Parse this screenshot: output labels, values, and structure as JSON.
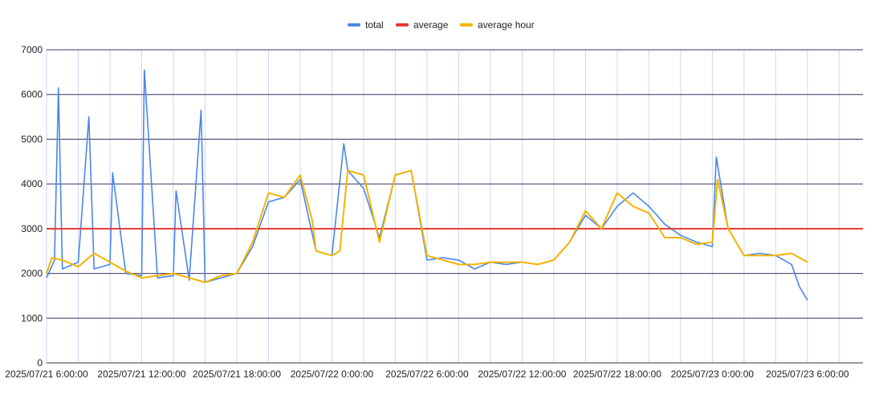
{
  "chart_data": {
    "type": "line",
    "title": "",
    "xlabel": "",
    "ylabel": "",
    "x_range": [
      "2025-07-21T04:00:00",
      "2025-07-23T07:30:00"
    ],
    "ylim": [
      0,
      7000
    ],
    "y_ticks": [
      0,
      1000,
      2000,
      3000,
      4000,
      5000,
      6000,
      7000
    ],
    "x_ticks": [
      {
        "t": "2025-07-21T04:00:00",
        "label": "2025/07/21 6:00:00"
      },
      {
        "t": "2025-07-21T10:00:00",
        "label": "2025/07/21 12:00:00"
      },
      {
        "t": "2025-07-21T16:00:00",
        "label": "2025/07/21 18:00:00"
      },
      {
        "t": "2025-07-21T22:00:00",
        "label": "2025/07/22 0:00:00"
      },
      {
        "t": "2025-07-22T04:00:00",
        "label": "2025/07/22 6:00:00"
      },
      {
        "t": "2025-07-22T10:00:00",
        "label": "2025/07/22 12:00:00"
      },
      {
        "t": "2025-07-22T16:00:00",
        "label": "2025/07/22 18:00:00"
      },
      {
        "t": "2025-07-22T22:00:00",
        "label": "2025/07/23 0:00:00"
      },
      {
        "t": "2025-07-23T04:00:00",
        "label": "2025/07/23 6:00:00"
      }
    ],
    "grid": true,
    "legend_position": "top",
    "series": [
      {
        "name": "total",
        "color": "#4a86e8",
        "points": [
          [
            "2025-07-21T04:00:00",
            1900
          ],
          [
            "2025-07-21T04:30:00",
            2300
          ],
          [
            "2025-07-21T04:45:00",
            6150
          ],
          [
            "2025-07-21T05:00:00",
            2100
          ],
          [
            "2025-07-21T06:00:00",
            2250
          ],
          [
            "2025-07-21T06:40:00",
            5500
          ],
          [
            "2025-07-21T07:00:00",
            2100
          ],
          [
            "2025-07-21T08:00:00",
            2200
          ],
          [
            "2025-07-21T08:10:00",
            4250
          ],
          [
            "2025-07-21T09:00:00",
            2000
          ],
          [
            "2025-07-21T10:00:00",
            1950
          ],
          [
            "2025-07-21T10:10:00",
            6550
          ],
          [
            "2025-07-21T11:00:00",
            1900
          ],
          [
            "2025-07-21T12:00:00",
            1950
          ],
          [
            "2025-07-21T12:10:00",
            3850
          ],
          [
            "2025-07-21T13:00:00",
            1850
          ],
          [
            "2025-07-21T13:45:00",
            5650
          ],
          [
            "2025-07-21T14:00:00",
            1800
          ],
          [
            "2025-07-21T15:00:00",
            1900
          ],
          [
            "2025-07-21T16:00:00",
            2000
          ],
          [
            "2025-07-21T17:00:00",
            2600
          ],
          [
            "2025-07-21T18:00:00",
            3600
          ],
          [
            "2025-07-21T19:00:00",
            3700
          ],
          [
            "2025-07-21T20:00:00",
            4100
          ],
          [
            "2025-07-21T21:00:00",
            2500
          ],
          [
            "2025-07-21T22:00:00",
            2400
          ],
          [
            "2025-07-21T22:45:00",
            4900
          ],
          [
            "2025-07-21T23:00:00",
            4300
          ],
          [
            "2025-07-22T00:00:00",
            3900
          ],
          [
            "2025-07-22T01:00:00",
            2800
          ],
          [
            "2025-07-22T02:00:00",
            4200
          ],
          [
            "2025-07-22T03:00:00",
            4300
          ],
          [
            "2025-07-22T04:00:00",
            2300
          ],
          [
            "2025-07-22T05:00:00",
            2350
          ],
          [
            "2025-07-22T06:00:00",
            2300
          ],
          [
            "2025-07-22T07:00:00",
            2100
          ],
          [
            "2025-07-22T08:00:00",
            2250
          ],
          [
            "2025-07-22T09:00:00",
            2200
          ],
          [
            "2025-07-22T10:00:00",
            2250
          ],
          [
            "2025-07-22T11:00:00",
            2200
          ],
          [
            "2025-07-22T12:00:00",
            2300
          ],
          [
            "2025-07-22T13:00:00",
            2700
          ],
          [
            "2025-07-22T14:00:00",
            3300
          ],
          [
            "2025-07-22T15:00:00",
            3000
          ],
          [
            "2025-07-22T16:00:00",
            3500
          ],
          [
            "2025-07-22T17:00:00",
            3800
          ],
          [
            "2025-07-22T18:00:00",
            3500
          ],
          [
            "2025-07-22T19:00:00",
            3100
          ],
          [
            "2025-07-22T20:00:00",
            2850
          ],
          [
            "2025-07-22T21:00:00",
            2700
          ],
          [
            "2025-07-22T22:00:00",
            2600
          ],
          [
            "2025-07-22T22:15:00",
            4600
          ],
          [
            "2025-07-22T23:00:00",
            3000
          ],
          [
            "2025-07-23T00:00:00",
            2400
          ],
          [
            "2025-07-23T01:00:00",
            2450
          ],
          [
            "2025-07-23T02:00:00",
            2400
          ],
          [
            "2025-07-23T03:00:00",
            2200
          ],
          [
            "2025-07-23T03:30:00",
            1700
          ],
          [
            "2025-07-23T04:00:00",
            1400
          ]
        ]
      },
      {
        "name": "average",
        "color": "#e53935",
        "value": 3000
      },
      {
        "name": "average hour",
        "color": "#f4b400",
        "points": [
          [
            "2025-07-21T04:00:00",
            2000
          ],
          [
            "2025-07-21T04:20:00",
            2350
          ],
          [
            "2025-07-21T05:00:00",
            2300
          ],
          [
            "2025-07-21T06:00:00",
            2150
          ],
          [
            "2025-07-21T07:00:00",
            2450
          ],
          [
            "2025-07-21T08:00:00",
            2250
          ],
          [
            "2025-07-21T09:00:00",
            2050
          ],
          [
            "2025-07-21T10:00:00",
            1900
          ],
          [
            "2025-07-21T11:00:00",
            1950
          ],
          [
            "2025-07-21T12:00:00",
            2000
          ],
          [
            "2025-07-21T13:00:00",
            1900
          ],
          [
            "2025-07-21T14:00:00",
            1800
          ],
          [
            "2025-07-21T15:00:00",
            1950
          ],
          [
            "2025-07-21T16:00:00",
            2000
          ],
          [
            "2025-07-21T17:00:00",
            2700
          ],
          [
            "2025-07-21T18:00:00",
            3800
          ],
          [
            "2025-07-21T19:00:00",
            3700
          ],
          [
            "2025-07-21T20:00:00",
            4200
          ],
          [
            "2025-07-21T20:45:00",
            3200
          ],
          [
            "2025-07-21T21:00:00",
            2500
          ],
          [
            "2025-07-21T22:00:00",
            2400
          ],
          [
            "2025-07-21T22:30:00",
            2500
          ],
          [
            "2025-07-21T23:00:00",
            4300
          ],
          [
            "2025-07-22T00:00:00",
            4200
          ],
          [
            "2025-07-22T01:00:00",
            2700
          ],
          [
            "2025-07-22T02:00:00",
            4200
          ],
          [
            "2025-07-22T03:00:00",
            4300
          ],
          [
            "2025-07-22T04:00:00",
            2400
          ],
          [
            "2025-07-22T05:00:00",
            2300
          ],
          [
            "2025-07-22T06:00:00",
            2200
          ],
          [
            "2025-07-22T07:00:00",
            2200
          ],
          [
            "2025-07-22T08:00:00",
            2250
          ],
          [
            "2025-07-22T09:00:00",
            2250
          ],
          [
            "2025-07-22T10:00:00",
            2250
          ],
          [
            "2025-07-22T11:00:00",
            2200
          ],
          [
            "2025-07-22T12:00:00",
            2300
          ],
          [
            "2025-07-22T13:00:00",
            2700
          ],
          [
            "2025-07-22T14:00:00",
            3400
          ],
          [
            "2025-07-22T15:00:00",
            3000
          ],
          [
            "2025-07-22T16:00:00",
            3800
          ],
          [
            "2025-07-22T17:00:00",
            3500
          ],
          [
            "2025-07-22T18:00:00",
            3350
          ],
          [
            "2025-07-22T19:00:00",
            2800
          ],
          [
            "2025-07-22T20:00:00",
            2800
          ],
          [
            "2025-07-22T21:00:00",
            2650
          ],
          [
            "2025-07-22T22:00:00",
            2700
          ],
          [
            "2025-07-22T22:20:00",
            4100
          ],
          [
            "2025-07-22T23:00:00",
            3000
          ],
          [
            "2025-07-23T00:00:00",
            2400
          ],
          [
            "2025-07-23T01:00:00",
            2400
          ],
          [
            "2025-07-23T02:00:00",
            2400
          ],
          [
            "2025-07-23T03:00:00",
            2450
          ],
          [
            "2025-07-23T04:00:00",
            2250
          ]
        ]
      }
    ]
  }
}
